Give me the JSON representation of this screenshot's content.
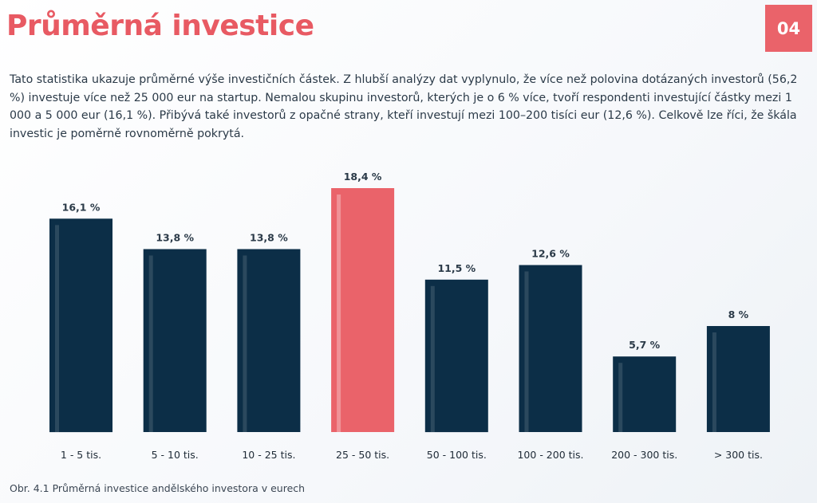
{
  "header": {
    "title": "Průměrná investice",
    "page_number": "04"
  },
  "description": "Tato statistika ukazuje průměrné výše investičních částek. Z hlubší analýzy dat vyplynulo, že více než polovina dotázaných investorů (56,2 %) investuje více než 25 000 eur na startup. Nemalou skupinu investorů, kterých je o 6 % více, tvoří respondenti investující částky mezi 1 000 a 5 000 eur (16,1 %). Přibývá také investorů z opačné strany, kteří investují mezi 100–200 tisíci eur (12,6 %). Celkově lze říci, že škála investic je poměrně rovnoměrně pokrytá.",
  "caption": "Obr. 4.1 Průměrná investice andělského investora v eurech",
  "colors": {
    "accent": "#e85a63",
    "bar": "#0c2e47",
    "highlight_bar": "#ea636a"
  },
  "chart_data": {
    "type": "bar",
    "categories": [
      "1 - 5 tis.",
      "5 - 10 tis.",
      "10 - 25 tis.",
      "25 - 50 tis.",
      "50 - 100 tis.",
      "100 - 200 tis.",
      "200 - 300 tis.",
      "> 300 tis."
    ],
    "values": [
      16.1,
      13.8,
      13.8,
      18.4,
      11.5,
      12.6,
      5.7,
      8
    ],
    "value_labels": [
      "16,1 %",
      "13,8 %",
      "13,8 %",
      "18,4 %",
      "11,5 %",
      "12,6 %",
      "5,7 %",
      "8 %"
    ],
    "highlight_index": 3,
    "ylim": [
      0,
      18.4
    ],
    "grid": false,
    "legend": "none"
  }
}
